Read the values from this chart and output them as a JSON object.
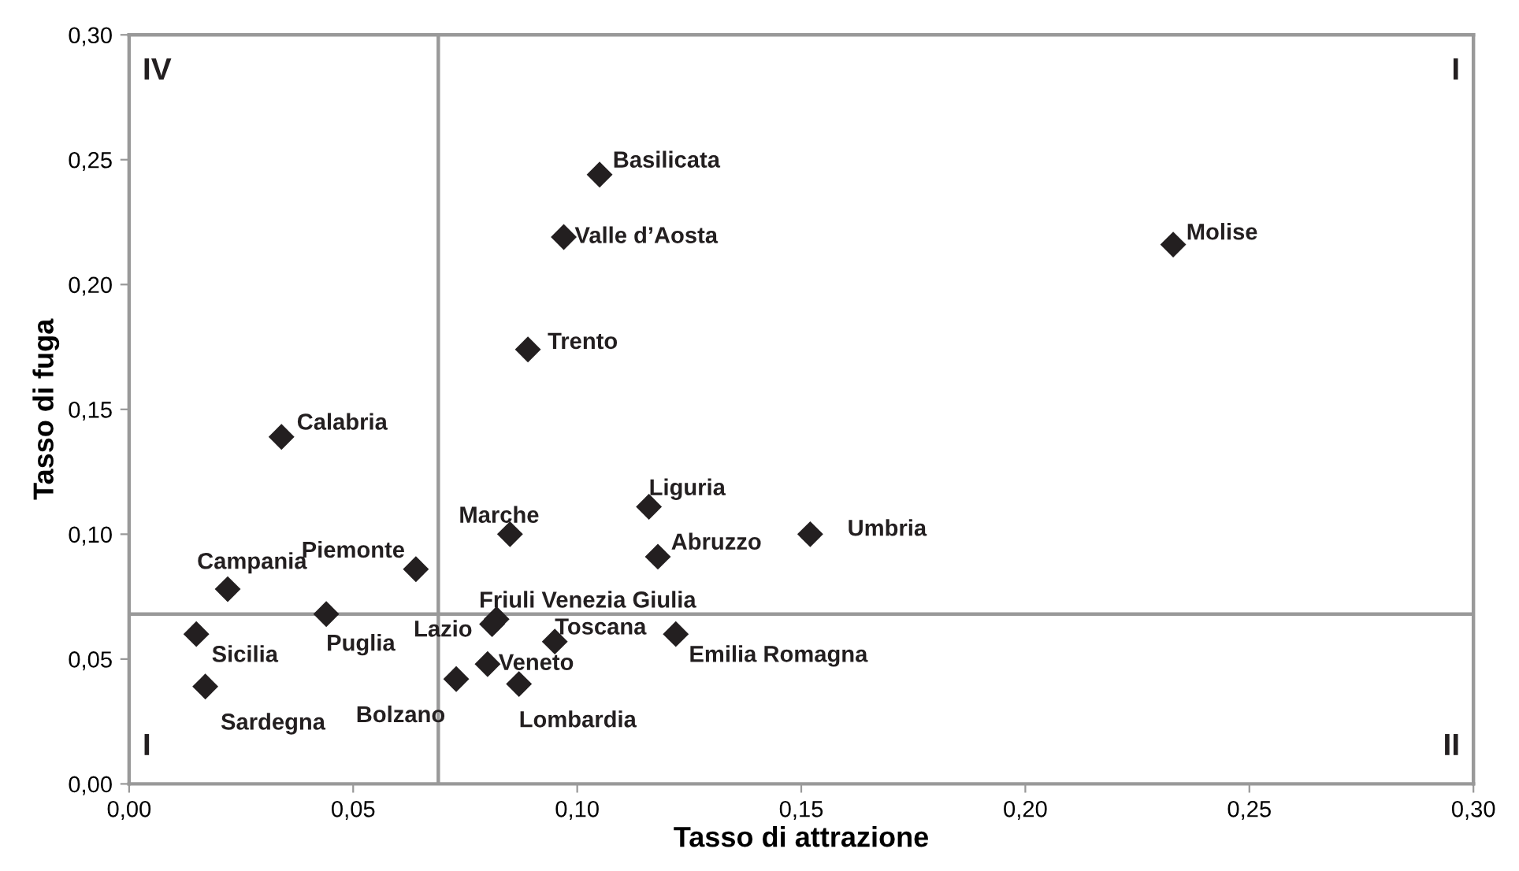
{
  "chart_data": {
    "type": "scatter",
    "xlabel": "Tasso di attrazione",
    "ylabel": "Tasso di fuga",
    "xlim": [
      0,
      0.3
    ],
    "ylim": [
      0,
      0.3
    ],
    "xticks": [
      {
        "value": 0,
        "label": "0,00"
      },
      {
        "value": 0.05,
        "label": "0,05"
      },
      {
        "value": 0.1,
        "label": "0,10"
      },
      {
        "value": 0.15,
        "label": "0,15"
      },
      {
        "value": 0.2,
        "label": "0,20"
      },
      {
        "value": 0.25,
        "label": "0,25"
      },
      {
        "value": 0.3,
        "label": "0,30"
      }
    ],
    "yticks": [
      {
        "value": 0,
        "label": "0,00"
      },
      {
        "value": 0.05,
        "label": "0,05"
      },
      {
        "value": 0.1,
        "label": "0,10"
      },
      {
        "value": 0.15,
        "label": "0,15"
      },
      {
        "value": 0.2,
        "label": "0,20"
      },
      {
        "value": 0.25,
        "label": "0,25"
      },
      {
        "value": 0.3,
        "label": "0,30"
      }
    ],
    "marker": "diamond",
    "grid": false,
    "series": [
      {
        "color": "#231f20",
        "x": [
          0.105,
          0.097,
          0.089,
          0.034,
          0.085,
          0.116,
          0.118,
          0.064,
          0.022,
          0.044,
          0.015,
          0.017,
          0.082,
          0.081,
          0.095,
          0.122,
          0.08,
          0.073,
          0.087,
          0.233,
          0.152
        ],
        "values": [
          0.244,
          0.219,
          0.174,
          0.139,
          0.1,
          0.111,
          0.091,
          0.086,
          0.078,
          0.068,
          0.06,
          0.039,
          0.066,
          0.064,
          0.057,
          0.06,
          0.048,
          0.042,
          0.04,
          0.216,
          0.1
        ],
        "value_labels": [
          "Basilicata",
          "Valle d’Aosta",
          "Trento",
          "Calabria",
          "Marche",
          "Liguria",
          "Abruzzo",
          "Piemonte",
          "Campania",
          "Puglia",
          "Sicilia",
          "Sardegna",
          "Friuli Venezia Giulia",
          "Lazio",
          "Toscana",
          "Emilia Romagna",
          "Veneto",
          "Bolzano",
          "Lombardia",
          "Molise",
          "Umbria"
        ]
      }
    ],
    "ref_lines": [
      {
        "axis": "x",
        "value": 0.069,
        "color": "#999999",
        "line_style": "solid"
      },
      {
        "axis": "y",
        "value": 0.068,
        "color": "#999999",
        "line_style": "solid"
      }
    ],
    "annotations": [
      "IV",
      "I",
      "I",
      "II"
    ]
  }
}
